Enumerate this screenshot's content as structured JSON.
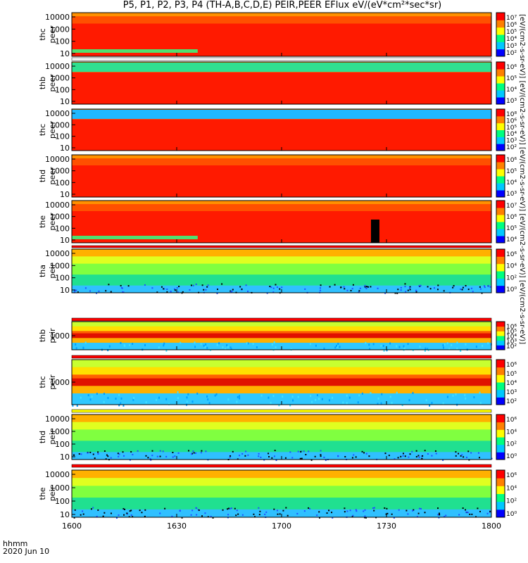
{
  "figure": {
    "title": "P5, P1, P2, P3, P4 (TH-A,B,C,D,E) PEIR,PEER EFlux eV/(eV*cm²*sec*sr)",
    "time_label": "hhmm",
    "date_label": "2020 Jun 10",
    "colorbar_side_label": "[eV/(cm2-s-sr-eV)] [eV/(cm2-s-sr-eV)] [eV/(cm2-s-sr-eV)] [eV/(cm2-s-sr-eV)] [eV/(cm2-s-sr-eV)]"
  },
  "chart_data": [
    {
      "type": "heatmap",
      "title": "",
      "ylabel": [
        "thc",
        "peer"
      ],
      "x_ticks": [
        "1600",
        "1630",
        "1700",
        "1730",
        "1800"
      ],
      "y_ticks": [
        "10",
        "100",
        "1000",
        "10000"
      ],
      "colorbar_ticks": [
        "10⁷",
        "10⁶",
        "10⁵",
        "10⁴",
        "10³",
        "10²"
      ],
      "colormap": [
        "#0000ff",
        "#00c8ff",
        "#00ff80",
        "#ffff00",
        "#ff8000",
        "#ff0000"
      ]
    },
    {
      "type": "heatmap",
      "title": "",
      "ylabel": [
        "thb",
        "peer"
      ],
      "x_ticks": [
        "1600",
        "1630",
        "1700",
        "1730",
        "1800"
      ],
      "y_ticks": [
        "10",
        "100",
        "1000",
        "10000"
      ],
      "colorbar_ticks": [
        "10⁶",
        "10⁵",
        "10⁴",
        "10³"
      ],
      "colormap": [
        "#0000ff",
        "#00c8ff",
        "#00ff80",
        "#ffff00",
        "#ff8000",
        "#ff0000"
      ]
    },
    {
      "type": "heatmap",
      "title": "",
      "ylabel": [
        "thc",
        "peer"
      ],
      "x_ticks": [
        "1600",
        "1630",
        "1700",
        "1730",
        "1800"
      ],
      "y_ticks": [
        "10",
        "100",
        "1000",
        "10000"
      ],
      "colorbar_ticks": [
        "10⁸",
        "10⁶",
        "10⁵",
        "10⁴",
        "10³",
        "10²"
      ],
      "colormap": [
        "#0000ff",
        "#00c8ff",
        "#00ff80",
        "#ffff00",
        "#ff8000",
        "#ff0000"
      ]
    },
    {
      "type": "heatmap",
      "title": "",
      "ylabel": [
        "thd",
        "peer"
      ],
      "x_ticks": [
        "1600",
        "1630",
        "1700",
        "1730",
        "1800"
      ],
      "y_ticks": [
        "10",
        "100",
        "1000",
        "10000"
      ],
      "colorbar_ticks": [
        "10⁶",
        "10⁵",
        "10⁴",
        "10³"
      ],
      "colormap": [
        "#0000ff",
        "#00c8ff",
        "#00ff80",
        "#ffff00",
        "#ff8000",
        "#ff0000"
      ]
    },
    {
      "type": "heatmap",
      "title": "",
      "ylabel": [
        "the",
        "peer"
      ],
      "x_ticks": [
        "1600",
        "1630",
        "1700",
        "1730",
        "1800"
      ],
      "y_ticks": [
        "10",
        "100",
        "1000",
        "10000"
      ],
      "colorbar_ticks": [
        "10⁷",
        "10⁶",
        "10⁵",
        "10⁴"
      ],
      "colormap": [
        "#0000ff",
        "#00c8ff",
        "#00ff80",
        "#ffff00",
        "#ff8000",
        "#ff0000"
      ]
    },
    {
      "type": "heatmap",
      "title": "",
      "ylabel": [
        "tha",
        "peir"
      ],
      "x_ticks": [
        "1600",
        "1630",
        "1700",
        "1730",
        "1800"
      ],
      "y_ticks": [
        "10",
        "100",
        "1000",
        "10000"
      ],
      "colorbar_ticks": [
        "10⁶",
        "10⁴",
        "10²",
        "10⁰"
      ],
      "colormap": [
        "#0000ff",
        "#00c8ff",
        "#00ff80",
        "#ffff00",
        "#ff8000",
        "#ff0000"
      ]
    },
    {
      "type": "heatmap",
      "title": "",
      "ylabel": [
        "thb",
        "peir"
      ],
      "x_ticks": [
        "1600",
        "1630",
        "1700",
        "1730",
        "1800"
      ],
      "y_ticks": [
        "1000"
      ],
      "colorbar_ticks": [
        "10⁶",
        "10⁵",
        "10⁴",
        "10³",
        "10²"
      ],
      "colormap": [
        "#0000ff",
        "#00c8ff",
        "#00ff80",
        "#ffff00",
        "#ff8000",
        "#ff0000"
      ]
    },
    {
      "type": "heatmap",
      "title": "",
      "ylabel": [
        "thc",
        "peir"
      ],
      "x_ticks": [
        "1600",
        "1630",
        "1700",
        "1730",
        "1800"
      ],
      "y_ticks": [
        "1000"
      ],
      "colorbar_ticks": [
        "10⁶",
        "10⁵",
        "10⁴",
        "10³",
        "10²"
      ],
      "colormap": [
        "#0000ff",
        "#00c8ff",
        "#00ff80",
        "#ffff00",
        "#ff8000",
        "#ff0000"
      ]
    },
    {
      "type": "heatmap",
      "title": "",
      "ylabel": [
        "thd",
        "peir"
      ],
      "x_ticks": [
        "1600",
        "1630",
        "1700",
        "1730",
        "1800"
      ],
      "y_ticks": [
        "10",
        "100",
        "1000",
        "10000"
      ],
      "colorbar_ticks": [
        "10⁶",
        "10⁴",
        "10²",
        "10⁰"
      ],
      "colormap": [
        "#0000ff",
        "#00c8ff",
        "#00ff80",
        "#ffff00",
        "#ff8000",
        "#ff0000"
      ]
    },
    {
      "type": "heatmap",
      "title": "",
      "ylabel": [
        "the",
        "peir"
      ],
      "x_ticks": [
        "1600",
        "1630",
        "1700",
        "1730",
        "1800"
      ],
      "y_ticks": [
        "10",
        "100",
        "1000",
        "10000"
      ],
      "colorbar_ticks": [
        "10⁶",
        "10⁴",
        "10²",
        "10⁰"
      ],
      "colormap": [
        "#0000ff",
        "#00c8ff",
        "#00ff80",
        "#ffff00",
        "#ff8000",
        "#ff0000"
      ]
    }
  ]
}
